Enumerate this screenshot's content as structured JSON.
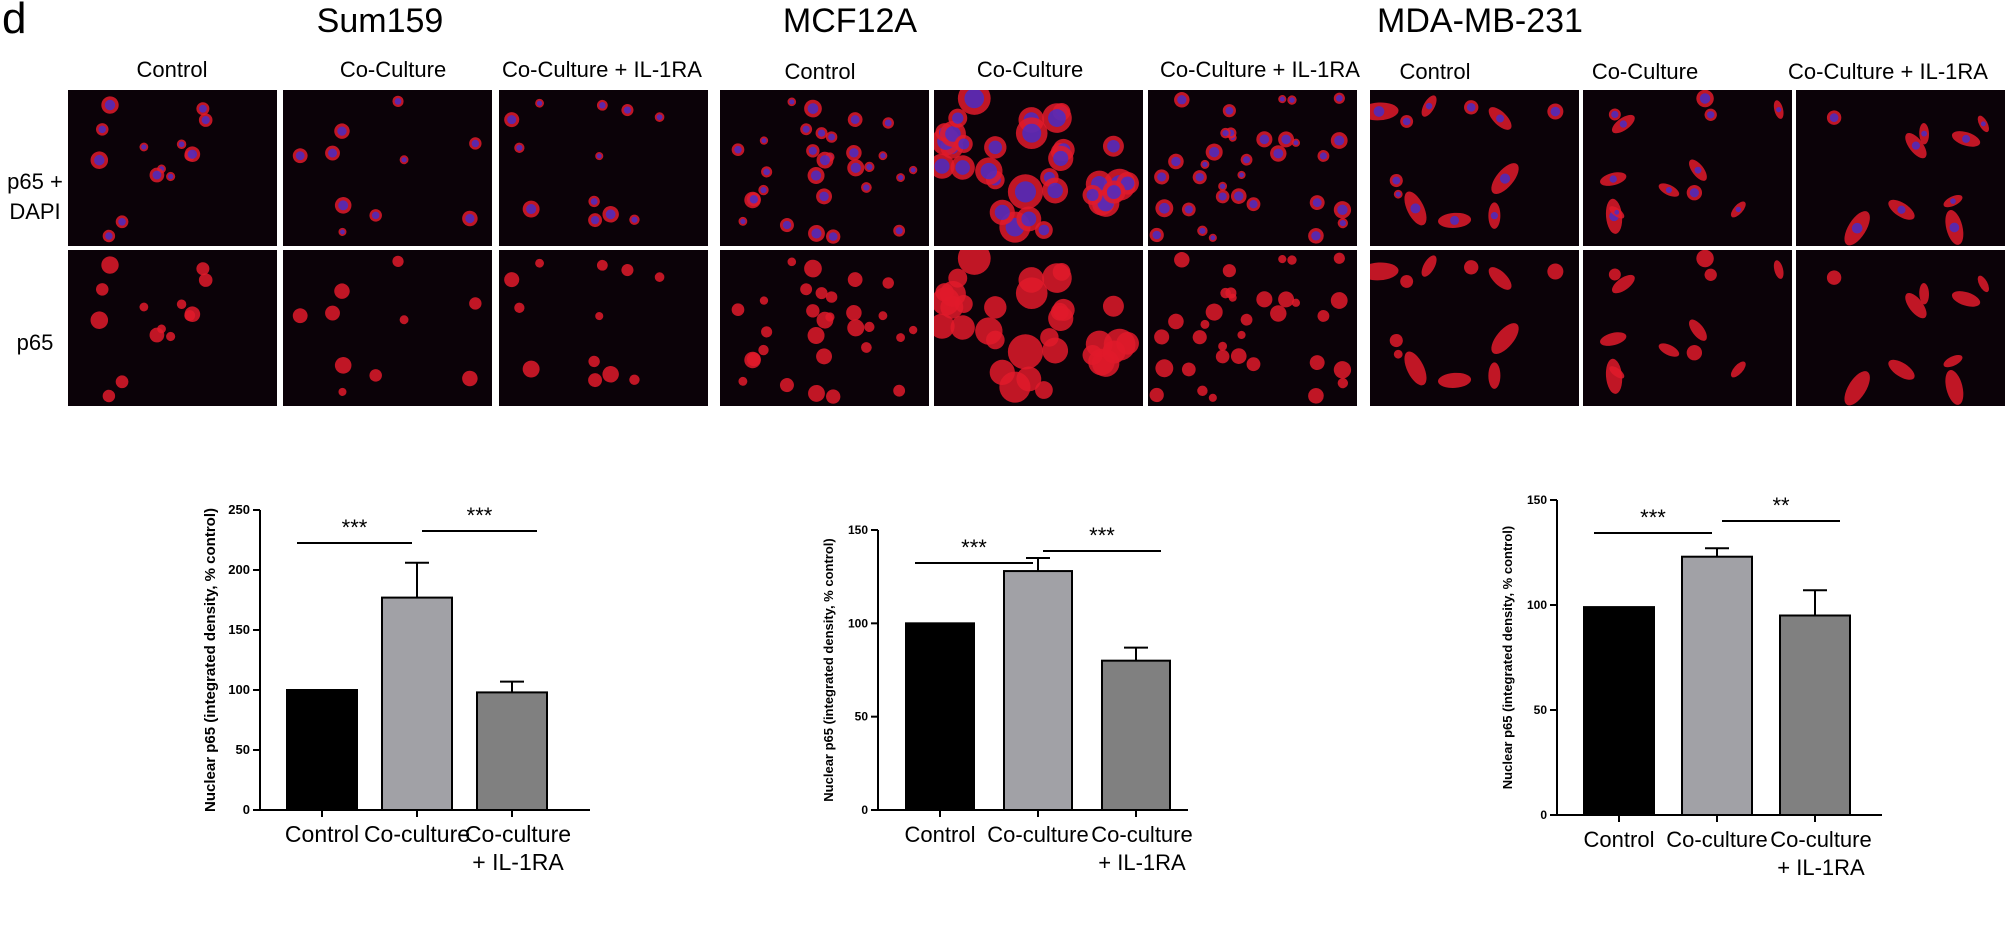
{
  "panel_letter": "d",
  "cell_lines": [
    "Sum159",
    "MCF12A",
    "MDA-MB-231"
  ],
  "image_columns": [
    "Control",
    "Co-Culture",
    "Co-Culture + IL-1RA"
  ],
  "image_rows": [
    "p65 + DAPI",
    "p65"
  ],
  "colors": {
    "control": "#000000",
    "coculture": "#a1a1a6",
    "coculture_il1ra": "#808080",
    "p65_stain": "#e01a2a",
    "dapi_stain": "#3a2fd8",
    "micro_background": "#0b0208"
  },
  "chart_data": [
    {
      "type": "bar",
      "cell_line": "Sum159",
      "categories": [
        "Control",
        "Co-culture",
        "Co-culture\n+ IL-1RA"
      ],
      "values": [
        100,
        177,
        98
      ],
      "errors": [
        0,
        29,
        9
      ],
      "ylabel": "Nuclear p65 (integrated density, % control)",
      "ylim": [
        0,
        250
      ],
      "yticks": [
        0,
        50,
        100,
        150,
        200,
        250
      ],
      "significance": [
        {
          "from": 0,
          "to": 1,
          "label": "***"
        },
        {
          "from": 1,
          "to": 2,
          "label": "***"
        }
      ]
    },
    {
      "type": "bar",
      "cell_line": "MCF12A",
      "categories": [
        "Control",
        "Co-culture",
        "Co-culture\n+ IL-1RA"
      ],
      "values": [
        100,
        128,
        80
      ],
      "errors": [
        0,
        7,
        7
      ],
      "ylabel": "Nuclear p65 (integrated density, % control)",
      "ylim": [
        0,
        150
      ],
      "yticks": [
        0,
        50,
        100,
        150
      ],
      "significance": [
        {
          "from": 0,
          "to": 1,
          "label": "***"
        },
        {
          "from": 1,
          "to": 2,
          "label": "***"
        }
      ]
    },
    {
      "type": "bar",
      "cell_line": "MDA-MB-231",
      "categories": [
        "Control",
        "Co-culture",
        "Co-culture\n+ IL-1RA"
      ],
      "values": [
        99,
        123,
        95
      ],
      "errors": [
        0,
        4,
        12
      ],
      "ylabel": "Nuclear p65 (integrated density, % control)",
      "ylim": [
        0,
        150
      ],
      "yticks": [
        0,
        50,
        100,
        150
      ],
      "significance": [
        {
          "from": 0,
          "to": 1,
          "label": "***"
        },
        {
          "from": 1,
          "to": 2,
          "label": "**"
        }
      ]
    }
  ]
}
